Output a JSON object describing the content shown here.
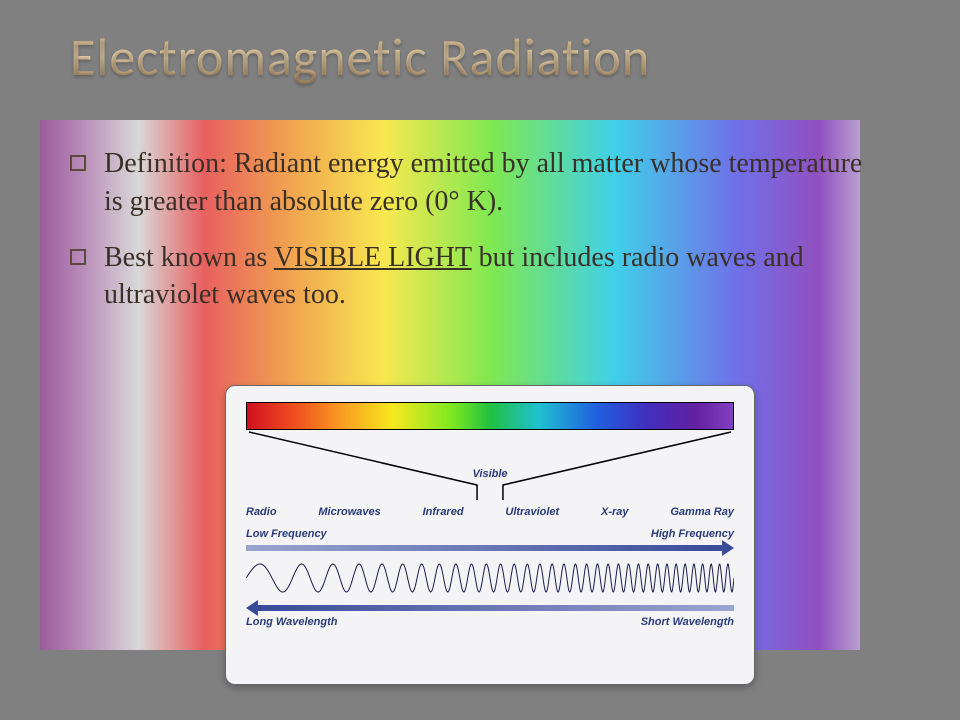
{
  "slide": {
    "title": "Electromagnetic Radiation",
    "title_color_gradient": [
      "#c8a878",
      "#e8d0a8",
      "#9a7850"
    ],
    "title_fontsize": 52,
    "background_color": "#808080",
    "panel_gradient": [
      "#9a5b9a",
      "#b88ab8",
      "#d8d8d8",
      "#e86060",
      "#f0a050",
      "#f8e850",
      "#80e850",
      "#40d0e8",
      "#7070e8",
      "#9050c0",
      "#b8a0d0"
    ],
    "bullets": [
      {
        "text_pre": "Definition: Radiant energy emitted by all matter whose temperature is greater than absolute zero (0° K).",
        "underlined": "",
        "text_post": ""
      },
      {
        "text_pre": "Best known as ",
        "underlined": "VISIBLE LIGHT",
        "text_post": " but includes radio waves and ultraviolet waves too."
      }
    ],
    "bullet_fontsize": 28,
    "bullet_text_color": "#3a3028"
  },
  "diagram": {
    "type": "infographic",
    "card_background": "#f4f4f6",
    "card_border_color": "#666666",
    "label_color": "#2a3a7a",
    "label_fontsize": 11,
    "visible_label": "Visible",
    "visible_spectrum_colors": [
      "#d01020",
      "#f05020",
      "#f8a020",
      "#f8e820",
      "#80e820",
      "#20c040",
      "#20c0d0",
      "#2060e0",
      "#4030c0",
      "#6020a0",
      "#8040c0"
    ],
    "bands": [
      "Radio",
      "Microwaves",
      "Infrared",
      "Ultraviolet",
      "X-ray",
      "Gamma Ray"
    ],
    "freq_low_label": "Low Frequency",
    "freq_high_label": "High Frequency",
    "wave_long_label": "Long Wavelength",
    "wave_short_label": "Short Wavelength",
    "arrow_color": "#3a4a9a",
    "wave_stroke_color": "#1a1a4a",
    "wave_cycles_start": 8,
    "wave_cycles_end": 60,
    "wave_amplitude": 14
  }
}
